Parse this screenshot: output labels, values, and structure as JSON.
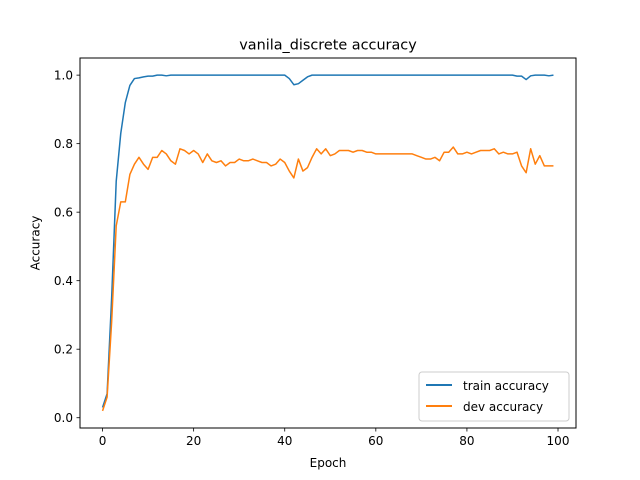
{
  "chart_data": {
    "type": "line",
    "title": "vanila_discrete accuracy",
    "xlabel": "Epoch",
    "ylabel": "Accuracy",
    "xlim": [
      -4.95,
      103.95
    ],
    "ylim": [
      -0.03,
      1.05
    ],
    "xticks": [
      0,
      20,
      40,
      60,
      80,
      100
    ],
    "yticks": [
      0.0,
      0.2,
      0.4,
      0.6,
      0.8,
      1.0
    ],
    "xtick_labels": [
      "0",
      "20",
      "40",
      "60",
      "80",
      "100"
    ],
    "ytick_labels": [
      "0.0",
      "0.2",
      "0.4",
      "0.6",
      "0.8",
      "1.0"
    ],
    "grid": false,
    "legend_position": "lower-right",
    "x": [
      0,
      1,
      2,
      3,
      4,
      5,
      6,
      7,
      8,
      9,
      10,
      11,
      12,
      13,
      14,
      15,
      16,
      17,
      18,
      19,
      20,
      21,
      22,
      23,
      24,
      25,
      26,
      27,
      28,
      29,
      30,
      31,
      32,
      33,
      34,
      35,
      36,
      37,
      38,
      39,
      40,
      41,
      42,
      43,
      44,
      45,
      46,
      47,
      48,
      49,
      50,
      51,
      52,
      53,
      54,
      55,
      56,
      57,
      58,
      59,
      60,
      61,
      62,
      63,
      64,
      65,
      66,
      67,
      68,
      69,
      70,
      71,
      72,
      73,
      74,
      75,
      76,
      77,
      78,
      79,
      80,
      81,
      82,
      83,
      84,
      85,
      86,
      87,
      88,
      89,
      90,
      91,
      92,
      93,
      94,
      95,
      96,
      97,
      98,
      99
    ],
    "series": [
      {
        "name": "train accuracy",
        "color": "#1f77b4",
        "values": [
          0.03,
          0.07,
          0.35,
          0.69,
          0.83,
          0.92,
          0.97,
          0.99,
          0.992,
          0.995,
          0.997,
          0.997,
          1.0,
          1.0,
          0.998,
          1.0,
          1.0,
          1.0,
          1.0,
          1.0,
          1.0,
          1.0,
          1.0,
          1.0,
          1.0,
          1.0,
          1.0,
          1.0,
          1.0,
          1.0,
          1.0,
          1.0,
          1.0,
          1.0,
          1.0,
          1.0,
          1.0,
          1.0,
          1.0,
          1.0,
          1.0,
          0.99,
          0.972,
          0.975,
          0.985,
          0.995,
          1.0,
          1.0,
          1.0,
          1.0,
          1.0,
          1.0,
          1.0,
          1.0,
          1.0,
          1.0,
          1.0,
          1.0,
          1.0,
          1.0,
          1.0,
          1.0,
          1.0,
          1.0,
          1.0,
          1.0,
          1.0,
          1.0,
          1.0,
          1.0,
          1.0,
          1.0,
          1.0,
          1.0,
          1.0,
          1.0,
          1.0,
          1.0,
          1.0,
          1.0,
          1.0,
          1.0,
          1.0,
          1.0,
          1.0,
          1.0,
          1.0,
          1.0,
          1.0,
          1.0,
          1.0,
          0.997,
          0.997,
          0.987,
          0.998,
          1.0,
          1.0,
          1.0,
          0.998,
          1.0
        ]
      },
      {
        "name": "dev accuracy",
        "color": "#ff7f0e",
        "values": [
          0.02,
          0.06,
          0.28,
          0.56,
          0.63,
          0.63,
          0.71,
          0.74,
          0.76,
          0.74,
          0.725,
          0.76,
          0.76,
          0.78,
          0.77,
          0.75,
          0.74,
          0.785,
          0.78,
          0.77,
          0.78,
          0.77,
          0.745,
          0.77,
          0.75,
          0.745,
          0.75,
          0.735,
          0.745,
          0.745,
          0.755,
          0.75,
          0.75,
          0.755,
          0.75,
          0.745,
          0.745,
          0.735,
          0.74,
          0.755,
          0.745,
          0.72,
          0.7,
          0.755,
          0.72,
          0.73,
          0.76,
          0.785,
          0.77,
          0.785,
          0.765,
          0.77,
          0.78,
          0.78,
          0.78,
          0.775,
          0.78,
          0.78,
          0.775,
          0.775,
          0.77,
          0.77,
          0.77,
          0.77,
          0.77,
          0.77,
          0.77,
          0.77,
          0.77,
          0.765,
          0.76,
          0.755,
          0.755,
          0.76,
          0.75,
          0.775,
          0.775,
          0.79,
          0.77,
          0.77,
          0.775,
          0.77,
          0.775,
          0.78,
          0.78,
          0.78,
          0.785,
          0.77,
          0.775,
          0.77,
          0.77,
          0.775,
          0.735,
          0.715,
          0.785,
          0.74,
          0.765,
          0.735,
          0.735,
          0.735
        ]
      }
    ]
  }
}
